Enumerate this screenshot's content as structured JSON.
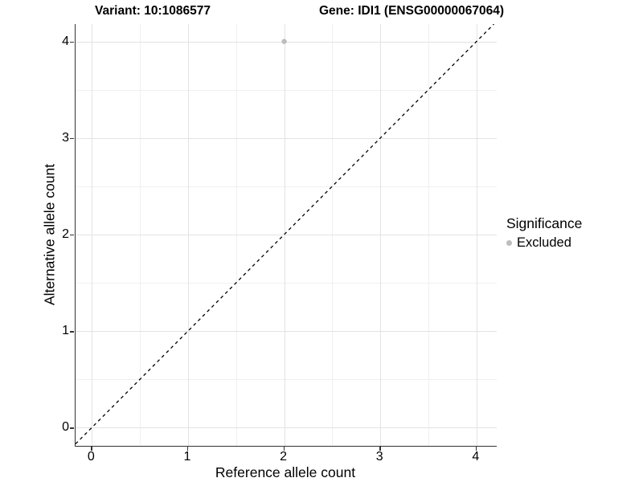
{
  "chart_data": {
    "type": "scatter",
    "title_left": "Variant: 10:1086577",
    "title_right": "Gene: IDI1 (ENSG00000067064)",
    "xlabel": "Reference allele count",
    "ylabel": "Alternative allele count",
    "xlim": [
      -0.17,
      4.21
    ],
    "ylim": [
      -0.19,
      4.18
    ],
    "x_ticks": [
      0,
      1,
      2,
      3,
      4
    ],
    "y_ticks": [
      0,
      1,
      2,
      3,
      4
    ],
    "x_minor": [
      0.5,
      1.5,
      2.5,
      3.5
    ],
    "y_minor": [
      0.5,
      1.5,
      2.5,
      3.5
    ],
    "grid": true,
    "points": [
      {
        "x": 2,
        "y": 4,
        "series": "Excluded"
      }
    ],
    "reference_line": {
      "type": "identity",
      "style": "dashed",
      "color": "#000000"
    },
    "legend": {
      "title": "Significance",
      "position": "right",
      "entries": [
        {
          "label": "Excluded",
          "color": "#bdbdbd"
        }
      ]
    },
    "colors": {
      "background": "#ffffff",
      "grid_major": "#e3e3e3",
      "grid_minor": "#f0f0f0",
      "axis_line": "#333333",
      "point": "#bdbdbd",
      "text": "#000000"
    }
  }
}
